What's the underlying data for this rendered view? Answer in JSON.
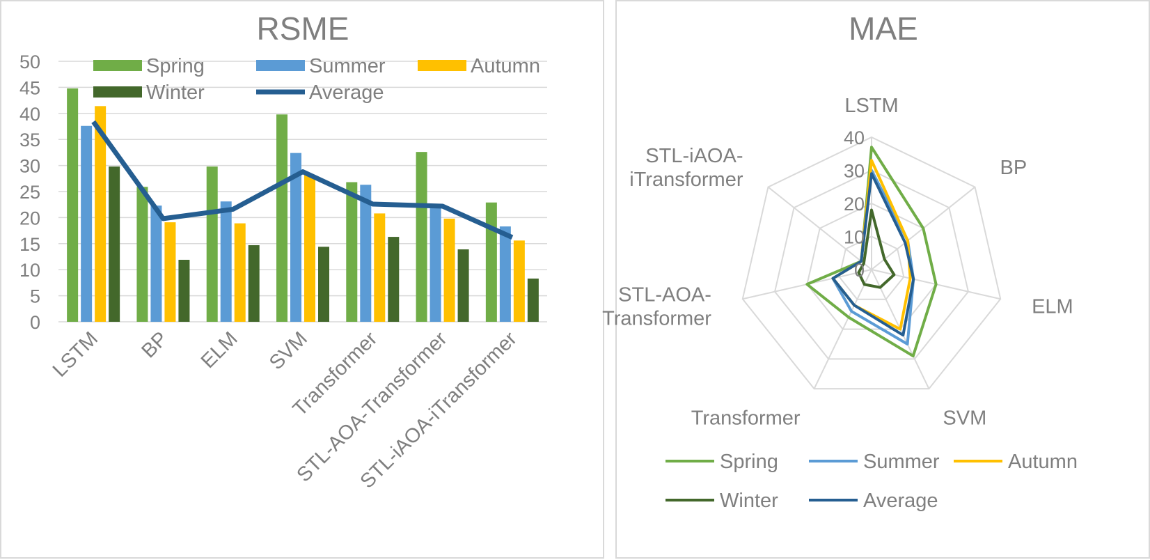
{
  "charts": [
    {
      "id": "rsme",
      "type": "bar",
      "title": "RSME",
      "categories": [
        "LSTM",
        "BP",
        "ELM",
        "SVM",
        "Transformer",
        "STL-AOA-Transformer",
        "STL-iAOA-iTransformer"
      ],
      "ylim": [
        0,
        50
      ],
      "yticks": [
        0,
        5,
        10,
        15,
        20,
        25,
        30,
        35,
        40,
        45,
        50
      ],
      "grid": true,
      "legend_position": "top",
      "series": [
        {
          "name": "Spring",
          "kind": "bar",
          "color": "#70ad47",
          "values": [
            44.8,
            25.9,
            29.8,
            39.8,
            26.8,
            32.6,
            22.9
          ]
        },
        {
          "name": "Summer",
          "kind": "bar",
          "color": "#5b9bd5",
          "values": [
            37.6,
            22.3,
            23.1,
            32.4,
            26.3,
            22.0,
            18.3
          ]
        },
        {
          "name": "Autumn",
          "kind": "bar",
          "color": "#ffc000",
          "values": [
            41.4,
            19.1,
            18.9,
            28.2,
            20.8,
            19.8,
            15.6
          ]
        },
        {
          "name": "Winter",
          "kind": "bar",
          "color": "#43682b",
          "values": [
            29.8,
            11.9,
            14.7,
            14.4,
            16.3,
            13.9,
            8.3
          ]
        },
        {
          "name": "Average",
          "kind": "line",
          "color": "#255e91",
          "values": [
            38.4,
            19.8,
            21.6,
            28.8,
            22.6,
            22.2,
            16.2
          ]
        }
      ]
    },
    {
      "id": "mae",
      "type": "radar",
      "title": "MAE",
      "categories": [
        "LSTM",
        "BP",
        "ELM",
        "SVM",
        "Transformer",
        "STL-AOA-\nTransformer",
        "STL-iAOA-\niTransformer"
      ],
      "rlim": [
        0,
        40
      ],
      "rticks": [
        0,
        10,
        20,
        30,
        40
      ],
      "legend_position": "bottom",
      "series": [
        {
          "name": "Spring",
          "color": "#70ad47",
          "values": [
            37,
            20,
            20,
            29,
            16,
            20,
            4
          ]
        },
        {
          "name": "Summer",
          "color": "#5b9bd5",
          "values": [
            30,
            14,
            13,
            25,
            14,
            12,
            4
          ]
        },
        {
          "name": "Autumn",
          "color": "#ffc000",
          "values": [
            33,
            14,
            12,
            20,
            12,
            12,
            4
          ]
        },
        {
          "name": "Winter",
          "color": "#43682b",
          "values": [
            18,
            5,
            7,
            6,
            5,
            4,
            3
          ]
        },
        {
          "name": "Average",
          "color": "#255e91",
          "values": [
            29,
            13,
            13,
            22,
            12,
            12,
            4
          ]
        }
      ]
    }
  ],
  "chart_data": [
    {
      "type": "bar",
      "title": "RSME",
      "categories": [
        "LSTM",
        "BP",
        "ELM",
        "SVM",
        "Transformer",
        "STL-AOA-Transformer",
        "STL-iAOA-iTransformer"
      ],
      "ylim": [
        0,
        50
      ],
      "series": [
        {
          "name": "Spring",
          "values": [
            44.8,
            25.9,
            29.8,
            39.8,
            26.8,
            32.6,
            22.9
          ]
        },
        {
          "name": "Summer",
          "values": [
            37.6,
            22.3,
            23.1,
            32.4,
            26.3,
            22.0,
            18.3
          ]
        },
        {
          "name": "Autumn",
          "values": [
            41.4,
            19.1,
            18.9,
            28.2,
            20.8,
            19.8,
            15.6
          ]
        },
        {
          "name": "Winter",
          "values": [
            29.8,
            11.9,
            14.7,
            14.4,
            16.3,
            13.9,
            8.3
          ]
        },
        {
          "name": "Average",
          "values": [
            38.4,
            19.8,
            21.6,
            28.8,
            22.6,
            22.2,
            16.2
          ]
        }
      ]
    },
    {
      "type": "radar",
      "title": "MAE",
      "categories": [
        "LSTM",
        "BP",
        "ELM",
        "SVM",
        "Transformer",
        "STL-AOA-Transformer",
        "STL-iAOA-iTransformer"
      ],
      "rlim": [
        0,
        40
      ],
      "series": [
        {
          "name": "Spring",
          "values": [
            37,
            20,
            20,
            29,
            16,
            20,
            4
          ]
        },
        {
          "name": "Summer",
          "values": [
            30,
            14,
            13,
            25,
            14,
            12,
            4
          ]
        },
        {
          "name": "Autumn",
          "values": [
            33,
            14,
            12,
            20,
            12,
            12,
            4
          ]
        },
        {
          "name": "Winter",
          "values": [
            18,
            5,
            7,
            6,
            5,
            4,
            3
          ]
        },
        {
          "name": "Average",
          "values": [
            29,
            13,
            13,
            22,
            12,
            12,
            4
          ]
        }
      ]
    }
  ]
}
